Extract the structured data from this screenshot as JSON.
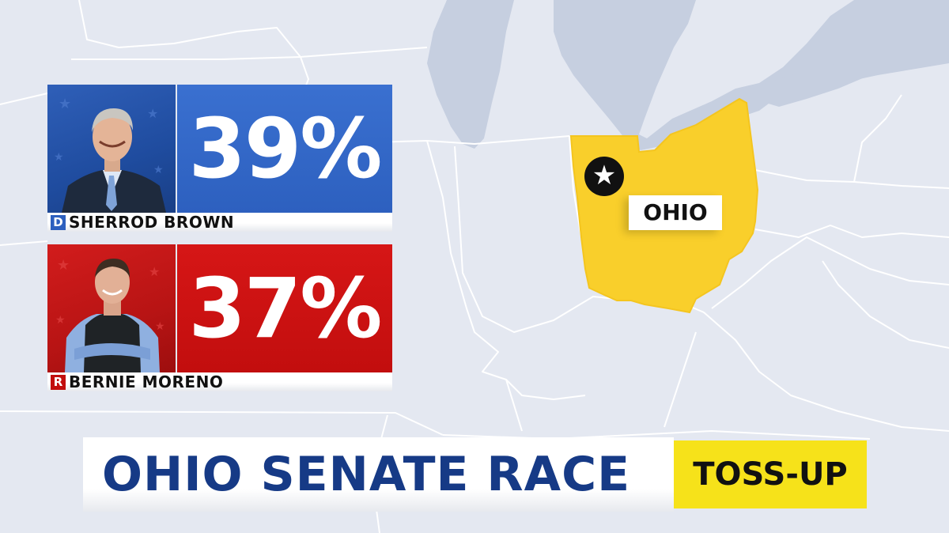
{
  "candidates": [
    {
      "party_letter": "D",
      "name": "SHERROD BROWN",
      "percent": "39%",
      "party_color": "#2d60bf"
    },
    {
      "party_letter": "R",
      "name": "BERNIE MORENO",
      "percent": "37%",
      "party_color": "#c20e0e"
    }
  ],
  "map": {
    "state_label": "OHIO",
    "highlight_color": "#f9cf2b",
    "marker_icon": "star-icon"
  },
  "footer": {
    "title": "OHIO SENATE RACE",
    "rating": "TOSS-UP",
    "title_color": "#163a86",
    "rating_color": "#f6e21a"
  }
}
